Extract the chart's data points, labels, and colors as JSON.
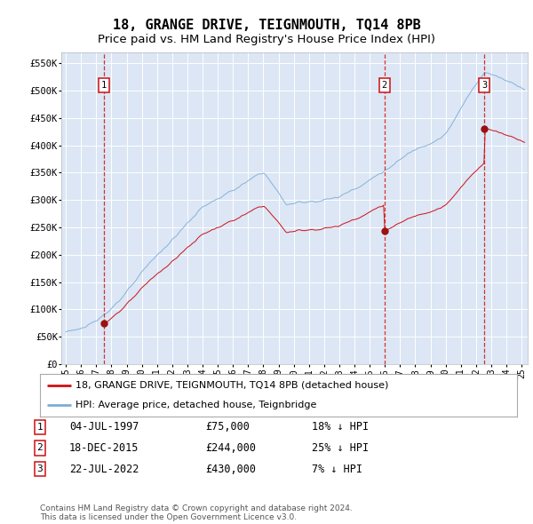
{
  "title": "18, GRANGE DRIVE, TEIGNMOUTH, TQ14 8PB",
  "subtitle": "Price paid vs. HM Land Registry's House Price Index (HPI)",
  "xlim": [
    1994.7,
    2025.4
  ],
  "ylim": [
    0,
    570000
  ],
  "yticks": [
    0,
    50000,
    100000,
    150000,
    200000,
    250000,
    300000,
    350000,
    400000,
    450000,
    500000,
    550000
  ],
  "ytick_labels": [
    "£0",
    "£50K",
    "£100K",
    "£150K",
    "£200K",
    "£250K",
    "£300K",
    "£350K",
    "£400K",
    "£450K",
    "£500K",
    "£550K"
  ],
  "background_color": "#dce6f5",
  "grid_color": "white",
  "sale_dates": [
    1997.5,
    2015.96,
    2022.55
  ],
  "sale_prices": [
    75000,
    244000,
    430000
  ],
  "sale_labels": [
    "1",
    "2",
    "3"
  ],
  "hpi_line_color": "#7dadd4",
  "sale_line_color": "#cc1111",
  "sale_dot_color": "#991111",
  "vline_color": "#cc1111",
  "legend_label_sale": "18, GRANGE DRIVE, TEIGNMOUTH, TQ14 8PB (detached house)",
  "legend_label_hpi": "HPI: Average price, detached house, Teignbridge",
  "table_rows": [
    [
      "1",
      "04-JUL-1997",
      "£75,000",
      "18% ↓ HPI"
    ],
    [
      "2",
      "18-DEC-2015",
      "£244,000",
      "25% ↓ HPI"
    ],
    [
      "3",
      "22-JUL-2022",
      "£430,000",
      "7% ↓ HPI"
    ]
  ],
  "footnote": "Contains HM Land Registry data © Crown copyright and database right 2024.\nThis data is licensed under the Open Government Licence v3.0.",
  "title_fontsize": 11,
  "subtitle_fontsize": 9.5
}
